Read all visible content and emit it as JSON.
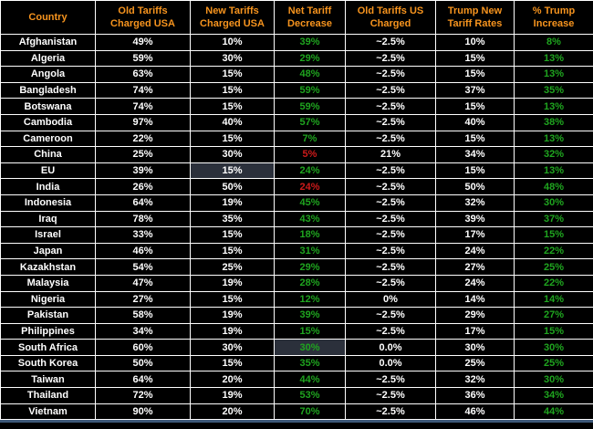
{
  "colors": {
    "background": "#000000",
    "grid_border": "#ffffff",
    "header_text": "#f7941e",
    "body_text": "#ffffff",
    "positive_green": "#1fa51f",
    "negative_red": "#cc1a1a",
    "selected_cell_bg": "#2b303b",
    "bottom_accent": "#3d5878"
  },
  "table": {
    "field_order": [
      "country",
      "old_usa",
      "new_usa",
      "net_decrease",
      "old_us_charged",
      "trump_rate",
      "trump_increase"
    ],
    "columns": [
      "Country",
      "Old Tariffs Charged USA",
      "New Tariffs Charged USA",
      "Net Tariff Decrease",
      "Old Tariffs US Charged",
      "Trump New Tariff Rates",
      "% Trump Increase"
    ],
    "rows": [
      {
        "country": "Afghanistan",
        "old_usa": "49%",
        "new_usa": "10%",
        "net_decrease": "39%",
        "net_decrease_color": "green",
        "old_us_charged": "~2.5%",
        "trump_rate": "10%",
        "trump_increase": "8%",
        "highlight": null
      },
      {
        "country": "Algeria",
        "old_usa": "59%",
        "new_usa": "30%",
        "net_decrease": "29%",
        "net_decrease_color": "green",
        "old_us_charged": "~2.5%",
        "trump_rate": "15%",
        "trump_increase": "13%",
        "highlight": null
      },
      {
        "country": "Angola",
        "old_usa": "63%",
        "new_usa": "15%",
        "net_decrease": "48%",
        "net_decrease_color": "green",
        "old_us_charged": "~2.5%",
        "trump_rate": "15%",
        "trump_increase": "13%",
        "highlight": null
      },
      {
        "country": "Bangladesh",
        "old_usa": "74%",
        "new_usa": "15%",
        "net_decrease": "59%",
        "net_decrease_color": "green",
        "old_us_charged": "~2.5%",
        "trump_rate": "37%",
        "trump_increase": "35%",
        "highlight": null
      },
      {
        "country": "Botswana",
        "old_usa": "74%",
        "new_usa": "15%",
        "net_decrease": "59%",
        "net_decrease_color": "green",
        "old_us_charged": "~2.5%",
        "trump_rate": "15%",
        "trump_increase": "13%",
        "highlight": null
      },
      {
        "country": "Cambodia",
        "old_usa": "97%",
        "new_usa": "40%",
        "net_decrease": "57%",
        "net_decrease_color": "green",
        "old_us_charged": "~2.5%",
        "trump_rate": "40%",
        "trump_increase": "38%",
        "highlight": null
      },
      {
        "country": "Cameroon",
        "old_usa": "22%",
        "new_usa": "15%",
        "net_decrease": "7%",
        "net_decrease_color": "green",
        "old_us_charged": "~2.5%",
        "trump_rate": "15%",
        "trump_increase": "13%",
        "highlight": null
      },
      {
        "country": "China",
        "old_usa": "25%",
        "new_usa": "30%",
        "net_decrease": "5%",
        "net_decrease_color": "red",
        "old_us_charged": "21%",
        "trump_rate": "34%",
        "trump_increase": "32%",
        "highlight": null
      },
      {
        "country": "EU",
        "old_usa": "39%",
        "new_usa": "15%",
        "net_decrease": "24%",
        "net_decrease_color": "green",
        "old_us_charged": "~2.5%",
        "trump_rate": "15%",
        "trump_increase": "13%",
        "highlight": "new_usa"
      },
      {
        "country": "India",
        "old_usa": "26%",
        "new_usa": "50%",
        "net_decrease": "24%",
        "net_decrease_color": "red",
        "old_us_charged": "~2.5%",
        "trump_rate": "50%",
        "trump_increase": "48%",
        "highlight": null
      },
      {
        "country": "Indonesia",
        "old_usa": "64%",
        "new_usa": "19%",
        "net_decrease": "45%",
        "net_decrease_color": "green",
        "old_us_charged": "~2.5%",
        "trump_rate": "32%",
        "trump_increase": "30%",
        "highlight": null
      },
      {
        "country": "Iraq",
        "old_usa": "78%",
        "new_usa": "35%",
        "net_decrease": "43%",
        "net_decrease_color": "green",
        "old_us_charged": "~2.5%",
        "trump_rate": "39%",
        "trump_increase": "37%",
        "highlight": null
      },
      {
        "country": "Israel",
        "old_usa": "33%",
        "new_usa": "15%",
        "net_decrease": "18%",
        "net_decrease_color": "green",
        "old_us_charged": "~2.5%",
        "trump_rate": "17%",
        "trump_increase": "15%",
        "highlight": null
      },
      {
        "country": "Japan",
        "old_usa": "46%",
        "new_usa": "15%",
        "net_decrease": "31%",
        "net_decrease_color": "green",
        "old_us_charged": "~2.5%",
        "trump_rate": "24%",
        "trump_increase": "22%",
        "highlight": null
      },
      {
        "country": "Kazakhstan",
        "old_usa": "54%",
        "new_usa": "25%",
        "net_decrease": "29%",
        "net_decrease_color": "green",
        "old_us_charged": "~2.5%",
        "trump_rate": "27%",
        "trump_increase": "25%",
        "highlight": null
      },
      {
        "country": "Malaysia",
        "old_usa": "47%",
        "new_usa": "19%",
        "net_decrease": "28%",
        "net_decrease_color": "green",
        "old_us_charged": "~2.5%",
        "trump_rate": "24%",
        "trump_increase": "22%",
        "highlight": null
      },
      {
        "country": "Nigeria",
        "old_usa": "27%",
        "new_usa": "15%",
        "net_decrease": "12%",
        "net_decrease_color": "green",
        "old_us_charged": "0%",
        "trump_rate": "14%",
        "trump_increase": "14%",
        "highlight": null
      },
      {
        "country": "Pakistan",
        "old_usa": "58%",
        "new_usa": "19%",
        "net_decrease": "39%",
        "net_decrease_color": "green",
        "old_us_charged": "~2.5%",
        "trump_rate": "29%",
        "trump_increase": "27%",
        "highlight": null
      },
      {
        "country": "Philippines",
        "old_usa": "34%",
        "new_usa": "19%",
        "net_decrease": "15%",
        "net_decrease_color": "green",
        "old_us_charged": "~2.5%",
        "trump_rate": "17%",
        "trump_increase": "15%",
        "highlight": null
      },
      {
        "country": "South Africa",
        "old_usa": "60%",
        "new_usa": "30%",
        "net_decrease": "30%",
        "net_decrease_color": "green",
        "old_us_charged": "0.0%",
        "trump_rate": "30%",
        "trump_increase": "30%",
        "highlight": "net_decrease"
      },
      {
        "country": "South Korea",
        "old_usa": "50%",
        "new_usa": "15%",
        "net_decrease": "35%",
        "net_decrease_color": "green",
        "old_us_charged": "0.0%",
        "trump_rate": "25%",
        "trump_increase": "25%",
        "highlight": null
      },
      {
        "country": "Taiwan",
        "old_usa": "64%",
        "new_usa": "20%",
        "net_decrease": "44%",
        "net_decrease_color": "green",
        "old_us_charged": "~2.5%",
        "trump_rate": "32%",
        "trump_increase": "30%",
        "highlight": null
      },
      {
        "country": "Thailand",
        "old_usa": "72%",
        "new_usa": "19%",
        "net_decrease": "53%",
        "net_decrease_color": "green",
        "old_us_charged": "~2.5%",
        "trump_rate": "36%",
        "trump_increase": "34%",
        "highlight": null
      },
      {
        "country": "Vietnam",
        "old_usa": "90%",
        "new_usa": "20%",
        "net_decrease": "70%",
        "net_decrease_color": "green",
        "old_us_charged": "~2.5%",
        "trump_rate": "46%",
        "trump_increase": "44%",
        "highlight": null
      }
    ]
  }
}
